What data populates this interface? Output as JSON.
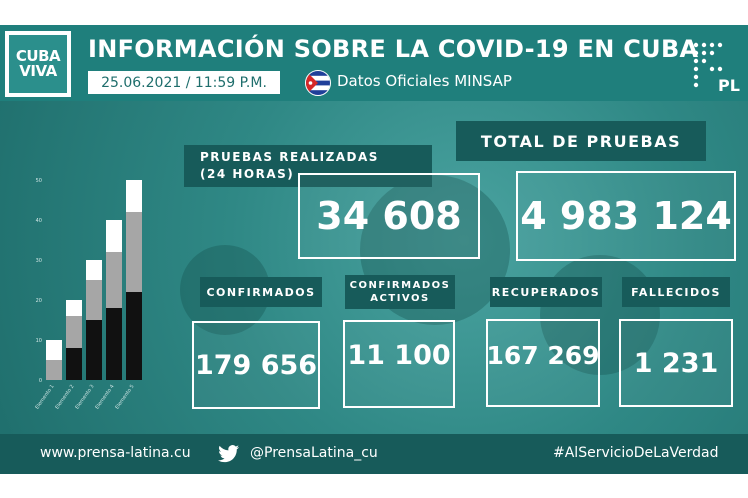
{
  "header": {
    "logo_line1": "CUBA",
    "logo_line2": "VIVA",
    "title": "INFORMACIÓN SOBRE LA COVID-19 EN CUBA",
    "date": "25.06.2021 / 11:59 P.M.",
    "source": "Datos Oficiales MINSAP",
    "pl_logo_text": "PL"
  },
  "stats": {
    "pruebas_label_line1": "PRUEBAS REALIZADAS",
    "pruebas_label_line2": "(24 HORAS)",
    "pruebas_value": "34 608",
    "total_label": "TOTAL DE PRUEBAS",
    "total_value": "4 983 124",
    "confirmados_label": "CONFIRMADOS",
    "confirmados_value": "179 656",
    "activos_label_line1": "CONFIRMADOS",
    "activos_label_line2": "ACTIVOS",
    "activos_value": "11 100",
    "recuperados_label": "RECUPERADOS",
    "recuperados_value": "167 269",
    "fallecidos_label": "FALLECIDOS",
    "fallecidos_value": "1 231"
  },
  "footer": {
    "website": "www.prensa-latina.cu",
    "twitter": "@PrensaLatina_cu",
    "hashtag": "#AlServicioDeLaVerdad"
  },
  "colors": {
    "teal": "#2f8885",
    "dark_teal": "#175b5a",
    "bar_black": "#111111",
    "bar_gray": "#a6a6a6",
    "bar_white": "#ffffff"
  },
  "chart_data": {
    "type": "bar",
    "categories": [
      "Elemento 1",
      "Elemento 2",
      "Elemento 3",
      "Elemento 4",
      "Elemento 5"
    ],
    "series": [
      {
        "values": [
          0,
          8,
          15,
          18,
          22
        ]
      },
      {
        "values": [
          5,
          8,
          10,
          14,
          20
        ]
      },
      {
        "values": [
          5,
          4,
          5,
          8,
          8
        ]
      }
    ],
    "stacked": true,
    "ylim": [
      0,
      50
    ],
    "yticks": [
      "0",
      "10",
      "20",
      "30",
      "40",
      "50"
    ],
    "decorative": true
  }
}
